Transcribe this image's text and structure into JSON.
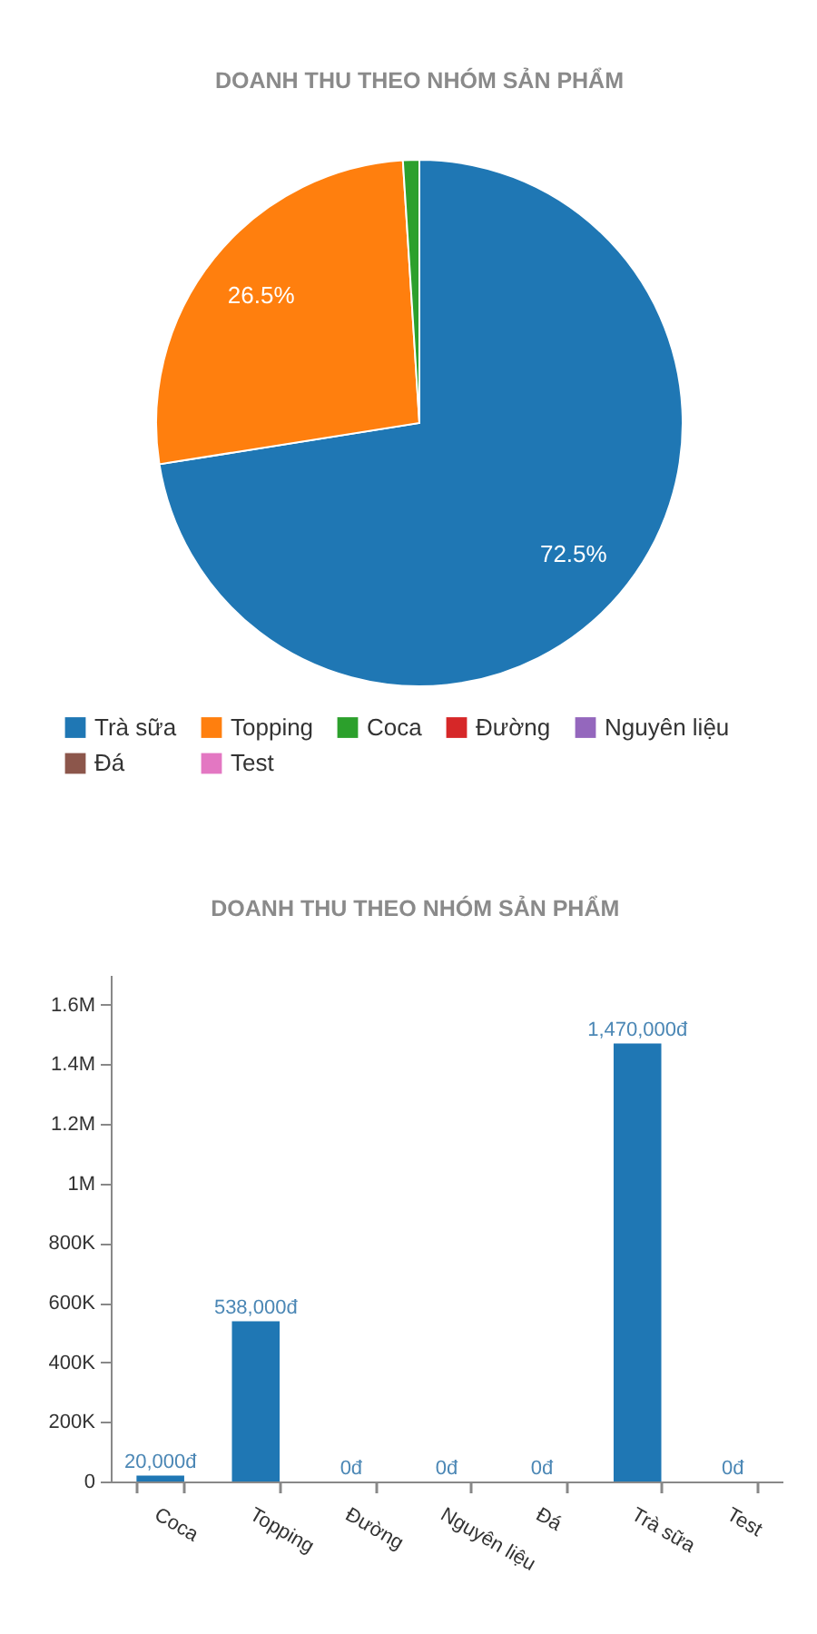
{
  "chart_data": [
    {
      "type": "pie",
      "title": "DOANH THU THEO NHÓM SẢN PHẨM",
      "categories": [
        "Trà sữa",
        "Topping",
        "Coca",
        "Đường",
        "Nguyên liệu",
        "Đá",
        "Test"
      ],
      "values": [
        72.5,
        26.5,
        1.0,
        0,
        0,
        0,
        0
      ],
      "colors": [
        "#1f77b4",
        "#ff7f0e",
        "#2ca02c",
        "#d62728",
        "#9467bd",
        "#8c564b",
        "#e377c2"
      ],
      "value_labels": [
        "72.5%",
        "26.5%",
        null,
        null,
        null,
        null,
        null
      ],
      "legend": "bottom"
    },
    {
      "type": "bar",
      "title": "DOANH THU THEO NHÓM SẢN PHẨM",
      "categories": [
        "Coca",
        "Topping",
        "Đường",
        "Nguyên liệu",
        "Đá",
        "Trà sữa",
        "Test"
      ],
      "values": [
        20000,
        538000,
        0,
        0,
        0,
        1470000,
        0
      ],
      "color": "#1f77b4",
      "value_labels": [
        "20,000đ",
        "538,000đ",
        "0đ",
        "0đ",
        "0đ",
        "1,470,000đ",
        "0đ"
      ],
      "ylim": [
        0,
        1700000
      ],
      "yticks": [
        0,
        {
          "value": 200000,
          "label": "200K"
        },
        {
          "value": 400000,
          "label": "400K"
        },
        {
          "value": 600000,
          "label": "600K"
        },
        {
          "value": 800000,
          "label": "800K"
        },
        {
          "value": 1000000,
          "label": "1M"
        },
        {
          "value": 1200000,
          "label": "1.2M"
        },
        {
          "value": 1400000,
          "label": "1.4M"
        },
        {
          "value": 1600000,
          "label": "1.6M"
        }
      ]
    }
  ]
}
